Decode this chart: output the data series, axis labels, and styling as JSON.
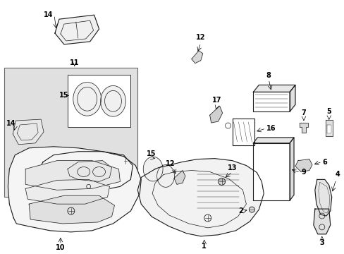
{
  "bg_color": "#ffffff",
  "fig_width": 4.89,
  "fig_height": 3.6,
  "dpi": 100,
  "lc": "#1a1a1a",
  "gray_fill": "#e8e8e8",
  "white_fill": "#ffffff",
  "light_fill": "#f2f2f2"
}
